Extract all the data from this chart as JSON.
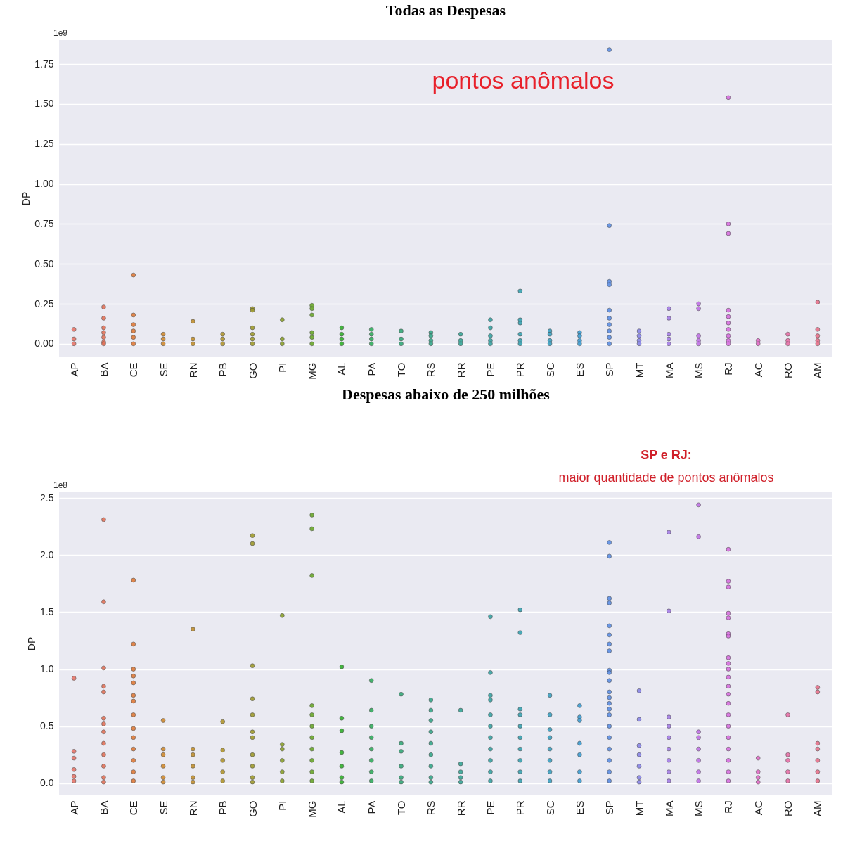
{
  "chart_data": [
    {
      "type": "scatter",
      "title": "Todas  as Despesas",
      "ylabel": "DP",
      "marker": "circle",
      "grid": "y",
      "categories": [
        "AP",
        "BA",
        "CE",
        "SE",
        "RN",
        "PB",
        "GO",
        "PI",
        "MG",
        "AL",
        "PA",
        "TO",
        "RS",
        "RR",
        "PE",
        "PR",
        "SC",
        "ES",
        "SP",
        "MT",
        "MA",
        "MS",
        "RJ",
        "AC",
        "RO",
        "AM"
      ],
      "ylim": [
        -0.08,
        1.9
      ],
      "yticks": [
        {
          "value": 0,
          "label": "0.00"
        },
        {
          "value": 0.25,
          "label": "0.25"
        },
        {
          "value": 0.5,
          "label": "0.50"
        },
        {
          "value": 0.75,
          "label": "0.75"
        },
        {
          "value": 1,
          "label": "1.00"
        },
        {
          "value": 1.25,
          "label": "1.25"
        },
        {
          "value": 1.5,
          "label": "1.50"
        },
        {
          "value": 1.75,
          "label": "1.75"
        }
      ],
      "annotations": [
        "1e9",
        "pontos anômalos"
      ],
      "series": [
        {
          "color": "#e8766a",
          "x": [
            "AP",
            "AP",
            "AP"
          ],
          "values": [
            0.09,
            0.03,
            0
          ]
        },
        {
          "color": "#e3735a",
          "x": [
            "BA",
            "BA",
            "BA",
            "BA",
            "BA",
            "BA",
            "BA"
          ],
          "values": [
            0.23,
            0.16,
            0.1,
            0.07,
            0.04,
            0.01,
            0
          ]
        },
        {
          "color": "#e07b39",
          "x": [
            "CE",
            "CE",
            "CE",
            "CE",
            "CE",
            "CE"
          ],
          "values": [
            0.43,
            0.18,
            0.12,
            0.08,
            0.04,
            0
          ]
        },
        {
          "color": "#d08a2f",
          "x": [
            "SE",
            "SE",
            "SE"
          ],
          "values": [
            0.06,
            0.03,
            0
          ]
        },
        {
          "color": "#c08f2f",
          "x": [
            "RN",
            "RN",
            "RN"
          ],
          "values": [
            0.14,
            0.03,
            0
          ]
        },
        {
          "color": "#b0952e",
          "x": [
            "PB",
            "PB",
            "PB"
          ],
          "values": [
            0.06,
            0.03,
            0
          ]
        },
        {
          "color": "#9f9b2c",
          "x": [
            "GO",
            "GO",
            "GO",
            "GO",
            "GO",
            "GO"
          ],
          "values": [
            0.22,
            0.21,
            0.1,
            0.06,
            0.03,
            0
          ]
        },
        {
          "color": "#8ba12b",
          "x": [
            "PI",
            "PI",
            "PI"
          ],
          "values": [
            0.15,
            0.03,
            0
          ]
        },
        {
          "color": "#6aa72b",
          "x": [
            "MG",
            "MG",
            "MG",
            "MG",
            "MG",
            "MG"
          ],
          "values": [
            0.24,
            0.22,
            0.18,
            0.07,
            0.04,
            0
          ]
        },
        {
          "color": "#32b02c",
          "x": [
            "AL",
            "AL",
            "AL",
            "AL"
          ],
          "values": [
            0.1,
            0.06,
            0.03,
            0
          ]
        },
        {
          "color": "#33ac5e",
          "x": [
            "PA",
            "PA",
            "PA",
            "PA"
          ],
          "values": [
            0.09,
            0.06,
            0.03,
            0
          ]
        },
        {
          "color": "#34a979",
          "x": [
            "TO",
            "TO",
            "TO"
          ],
          "values": [
            0.08,
            0.03,
            0
          ]
        },
        {
          "color": "#35a88a",
          "x": [
            "RS",
            "RS",
            "RS",
            "RS"
          ],
          "values": [
            0.07,
            0.05,
            0.02,
            0
          ]
        },
        {
          "color": "#36a697",
          "x": [
            "RR",
            "RR",
            "RR"
          ],
          "values": [
            0.06,
            0.02,
            0
          ]
        },
        {
          "color": "#37a4a4",
          "x": [
            "PE",
            "PE",
            "PE",
            "PE",
            "PE"
          ],
          "values": [
            0.15,
            0.1,
            0.05,
            0.02,
            0
          ]
        },
        {
          "color": "#38a2b1",
          "x": [
            "PR",
            "PR",
            "PR",
            "PR",
            "PR",
            "PR"
          ],
          "values": [
            0.33,
            0.15,
            0.13,
            0.06,
            0.02,
            0
          ]
        },
        {
          "color": "#3aa0c1",
          "x": [
            "SC",
            "SC",
            "SC",
            "SC"
          ],
          "values": [
            0.08,
            0.06,
            0.02,
            0
          ]
        },
        {
          "color": "#3c9dd3",
          "x": [
            "ES",
            "ES",
            "ES",
            "ES"
          ],
          "values": [
            0.07,
            0.05,
            0.02,
            0
          ]
        },
        {
          "color": "#5d8fe5",
          "x": [
            "SP",
            "SP",
            "SP",
            "SP",
            "SP",
            "SP",
            "SP",
            "SP",
            "SP",
            "SP"
          ],
          "values": [
            1.84,
            0.74,
            0.39,
            0.37,
            0.21,
            0.16,
            0.12,
            0.08,
            0.04,
            0
          ]
        },
        {
          "color": "#8a86e9",
          "x": [
            "MT",
            "MT",
            "MT",
            "MT"
          ],
          "values": [
            0.08,
            0.05,
            0.02,
            0
          ]
        },
        {
          "color": "#a67ee8",
          "x": [
            "MA",
            "MA",
            "MA",
            "MA",
            "MA"
          ],
          "values": [
            0.22,
            0.16,
            0.06,
            0.03,
            0
          ]
        },
        {
          "color": "#c071e6",
          "x": [
            "MS",
            "MS",
            "MS",
            "MS",
            "MS"
          ],
          "values": [
            0.25,
            0.22,
            0.05,
            0.02,
            0
          ]
        },
        {
          "color": "#d86ee0",
          "x": [
            "RJ",
            "RJ",
            "RJ",
            "RJ",
            "RJ",
            "RJ",
            "RJ",
            "RJ",
            "RJ",
            "RJ"
          ],
          "values": [
            1.54,
            0.75,
            0.69,
            0.21,
            0.17,
            0.13,
            0.09,
            0.05,
            0.02,
            0
          ]
        },
        {
          "color": "#e46bc8",
          "x": [
            "AC",
            "AC"
          ],
          "values": [
            0.02,
            0
          ]
        },
        {
          "color": "#e86fa7",
          "x": [
            "RO",
            "RO",
            "RO"
          ],
          "values": [
            0.06,
            0.02,
            0
          ]
        },
        {
          "color": "#e8718a",
          "x": [
            "AM",
            "AM",
            "AM",
            "AM",
            "AM"
          ],
          "values": [
            0.26,
            0.09,
            0.05,
            0.02,
            0
          ]
        }
      ]
    },
    {
      "type": "scatter",
      "title": "Despesas abaixo  de 250 milhões",
      "ylabel": "DP",
      "marker": "circle",
      "grid": "y",
      "categories": [
        "AP",
        "BA",
        "CE",
        "SE",
        "RN",
        "PB",
        "GO",
        "PI",
        "MG",
        "AL",
        "PA",
        "TO",
        "RS",
        "RR",
        "PE",
        "PR",
        "SC",
        "ES",
        "SP",
        "MT",
        "MA",
        "MS",
        "RJ",
        "AC",
        "RO",
        "AM"
      ],
      "ylim": [
        -0.1,
        2.55
      ],
      "yticks": [
        {
          "value": 0,
          "label": "0.0"
        },
        {
          "value": 0.5,
          "label": "0.5"
        },
        {
          "value": 1,
          "label": "1.0"
        },
        {
          "value": 1.5,
          "label": "1.5"
        },
        {
          "value": 2,
          "label": "2.0"
        },
        {
          "value": 2.5,
          "label": "2.5"
        }
      ],
      "annotations": [
        "1e8",
        "SP e RJ:",
        "maior quantidade de pontos anômalos"
      ],
      "series": [
        {
          "color": "#e8766a",
          "x": [
            "AP",
            "AP",
            "AP",
            "AP",
            "AP",
            "AP"
          ],
          "values": [
            0.92,
            0.28,
            0.22,
            0.12,
            0.06,
            0.02
          ]
        },
        {
          "color": "#e3735a",
          "x": [
            "BA",
            "BA",
            "BA",
            "BA",
            "BA",
            "BA",
            "BA",
            "BA",
            "BA",
            "BA",
            "BA",
            "BA",
            "BA"
          ],
          "values": [
            2.31,
            1.59,
            1.01,
            0.85,
            0.8,
            0.57,
            0.52,
            0.45,
            0.35,
            0.25,
            0.15,
            0.05,
            0.01
          ]
        },
        {
          "color": "#e07b39",
          "x": [
            "CE",
            "CE",
            "CE",
            "CE",
            "CE",
            "CE",
            "CE",
            "CE",
            "CE",
            "CE",
            "CE",
            "CE",
            "CE",
            "CE"
          ],
          "values": [
            1.78,
            1.22,
            1.0,
            0.94,
            0.88,
            0.77,
            0.72,
            0.6,
            0.48,
            0.4,
            0.3,
            0.2,
            0.1,
            0.02
          ]
        },
        {
          "color": "#d08a2f",
          "x": [
            "SE",
            "SE",
            "SE",
            "SE",
            "SE",
            "SE"
          ],
          "values": [
            0.55,
            0.3,
            0.25,
            0.15,
            0.05,
            0.01
          ]
        },
        {
          "color": "#c08f2f",
          "x": [
            "RN",
            "RN",
            "RN",
            "RN",
            "RN",
            "RN"
          ],
          "values": [
            1.35,
            0.3,
            0.25,
            0.15,
            0.05,
            0.01
          ]
        },
        {
          "color": "#b0952e",
          "x": [
            "PB",
            "PB",
            "PB",
            "PB",
            "PB"
          ],
          "values": [
            0.54,
            0.29,
            0.2,
            0.1,
            0.02
          ]
        },
        {
          "color": "#9f9b2c",
          "x": [
            "GO",
            "GO",
            "GO",
            "GO",
            "GO",
            "GO",
            "GO",
            "GO",
            "GO",
            "GO",
            "GO"
          ],
          "values": [
            2.17,
            2.1,
            1.03,
            0.74,
            0.6,
            0.45,
            0.4,
            0.25,
            0.15,
            0.05,
            0.01
          ]
        },
        {
          "color": "#8ba12b",
          "x": [
            "PI",
            "PI",
            "PI",
            "PI",
            "PI",
            "PI"
          ],
          "values": [
            1.47,
            0.34,
            0.3,
            0.2,
            0.1,
            0.02
          ]
        },
        {
          "color": "#6aa72b",
          "x": [
            "MG",
            "MG",
            "MG",
            "MG",
            "MG",
            "MG",
            "MG",
            "MG",
            "MG",
            "MG",
            "MG"
          ],
          "values": [
            2.35,
            2.23,
            1.82,
            0.68,
            0.6,
            0.5,
            0.4,
            0.3,
            0.2,
            0.1,
            0.02
          ]
        },
        {
          "color": "#32b02c",
          "x": [
            "AL",
            "AL",
            "AL",
            "AL",
            "AL",
            "AL",
            "AL"
          ],
          "values": [
            1.02,
            0.57,
            0.46,
            0.27,
            0.15,
            0.05,
            0.01
          ]
        },
        {
          "color": "#33ac5e",
          "x": [
            "PA",
            "PA",
            "PA",
            "PA",
            "PA",
            "PA",
            "PA",
            "PA"
          ],
          "values": [
            0.9,
            0.64,
            0.5,
            0.4,
            0.3,
            0.2,
            0.1,
            0.02
          ]
        },
        {
          "color": "#34a979",
          "x": [
            "TO",
            "TO",
            "TO",
            "TO",
            "TO",
            "TO"
          ],
          "values": [
            0.78,
            0.35,
            0.28,
            0.15,
            0.05,
            0.01
          ]
        },
        {
          "color": "#35a88a",
          "x": [
            "RS",
            "RS",
            "RS",
            "RS",
            "RS",
            "RS",
            "RS",
            "RS",
            "RS"
          ],
          "values": [
            0.73,
            0.64,
            0.55,
            0.45,
            0.35,
            0.25,
            0.15,
            0.05,
            0.01
          ]
        },
        {
          "color": "#36a697",
          "x": [
            "RR",
            "RR",
            "RR",
            "RR",
            "RR"
          ],
          "values": [
            0.64,
            0.17,
            0.1,
            0.05,
            0.01
          ]
        },
        {
          "color": "#37a4a4",
          "x": [
            "PE",
            "PE",
            "PE",
            "PE",
            "PE",
            "PE",
            "PE",
            "PE",
            "PE",
            "PE",
            "PE"
          ],
          "values": [
            1.46,
            0.97,
            0.77,
            0.73,
            0.6,
            0.5,
            0.4,
            0.3,
            0.2,
            0.1,
            0.02
          ]
        },
        {
          "color": "#38a2b1",
          "x": [
            "PR",
            "PR",
            "PR",
            "PR",
            "PR",
            "PR",
            "PR",
            "PR",
            "PR",
            "PR"
          ],
          "values": [
            1.52,
            1.32,
            0.65,
            0.6,
            0.5,
            0.4,
            0.3,
            0.2,
            0.1,
            0.02
          ]
        },
        {
          "color": "#3aa0c1",
          "x": [
            "SC",
            "SC",
            "SC",
            "SC",
            "SC",
            "SC",
            "SC",
            "SC"
          ],
          "values": [
            0.77,
            0.6,
            0.47,
            0.4,
            0.3,
            0.2,
            0.1,
            0.02
          ]
        },
        {
          "color": "#3c9dd3",
          "x": [
            "ES",
            "ES",
            "ES",
            "ES",
            "ES",
            "ES",
            "ES"
          ],
          "values": [
            0.68,
            0.58,
            0.55,
            0.35,
            0.25,
            0.1,
            0.02
          ]
        },
        {
          "color": "#5d8fe5",
          "x": [
            "SP",
            "SP",
            "SP",
            "SP",
            "SP",
            "SP",
            "SP",
            "SP",
            "SP",
            "SP",
            "SP",
            "SP",
            "SP",
            "SP",
            "SP",
            "SP",
            "SP",
            "SP",
            "SP",
            "SP",
            "SP",
            "SP"
          ],
          "values": [
            2.11,
            1.99,
            1.62,
            1.58,
            1.38,
            1.3,
            1.22,
            1.16,
            0.99,
            0.97,
            0.9,
            0.8,
            0.75,
            0.7,
            0.65,
            0.6,
            0.5,
            0.4,
            0.3,
            0.2,
            0.1,
            0.02
          ]
        },
        {
          "color": "#8a86e9",
          "x": [
            "MT",
            "MT",
            "MT",
            "MT",
            "MT",
            "MT",
            "MT"
          ],
          "values": [
            0.81,
            0.56,
            0.33,
            0.25,
            0.15,
            0.05,
            0.01
          ]
        },
        {
          "color": "#a67ee8",
          "x": [
            "MA",
            "MA",
            "MA",
            "MA",
            "MA",
            "MA",
            "MA",
            "MA",
            "MA"
          ],
          "values": [
            2.2,
            1.51,
            0.58,
            0.5,
            0.4,
            0.3,
            0.2,
            0.1,
            0.02
          ]
        },
        {
          "color": "#c071e6",
          "x": [
            "MS",
            "MS",
            "MS",
            "MS",
            "MS",
            "MS",
            "MS",
            "MS"
          ],
          "values": [
            2.44,
            2.16,
            0.45,
            0.4,
            0.3,
            0.2,
            0.1,
            0.02
          ]
        },
        {
          "color": "#d86ee0",
          "x": [
            "RJ",
            "RJ",
            "RJ",
            "RJ",
            "RJ",
            "RJ",
            "RJ",
            "RJ",
            "RJ",
            "RJ",
            "RJ",
            "RJ",
            "RJ",
            "RJ",
            "RJ",
            "RJ",
            "RJ",
            "RJ",
            "RJ",
            "RJ",
            "RJ"
          ],
          "values": [
            2.05,
            1.77,
            1.72,
            1.49,
            1.45,
            1.31,
            1.29,
            1.1,
            1.05,
            1.0,
            0.93,
            0.85,
            0.78,
            0.7,
            0.6,
            0.5,
            0.4,
            0.3,
            0.2,
            0.1,
            0.02
          ]
        },
        {
          "color": "#e46bc8",
          "x": [
            "AC",
            "AC",
            "AC",
            "AC"
          ],
          "values": [
            0.22,
            0.1,
            0.05,
            0.01
          ]
        },
        {
          "color": "#e86fa7",
          "x": [
            "RO",
            "RO",
            "RO",
            "RO",
            "RO"
          ],
          "values": [
            0.6,
            0.25,
            0.2,
            0.1,
            0.02
          ]
        },
        {
          "color": "#e8718a",
          "x": [
            "AM",
            "AM",
            "AM",
            "AM",
            "AM",
            "AM",
            "AM"
          ],
          "values": [
            0.84,
            0.8,
            0.35,
            0.3,
            0.2,
            0.1,
            0.02
          ]
        }
      ]
    }
  ]
}
